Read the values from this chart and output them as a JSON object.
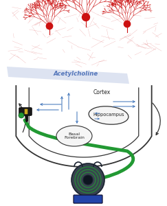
{
  "bg_color": "#ffffff",
  "acetylcholine_text": "Acetylcholine",
  "cortex_text": "Cortex",
  "hippocampus_text": "Hippocampus",
  "basal_forebrain_text": "Basal\nForebrain",
  "neuron_color": "#cc1111",
  "arrow_blue": "#4477bb",
  "bowl_edge": "#333333",
  "hose_green": "#229933",
  "device_dark": "#334455",
  "device_base": "#2244aa",
  "acetylcholine_band_color": "#aabbdd",
  "acetylcholine_text_color": "#5577bb"
}
